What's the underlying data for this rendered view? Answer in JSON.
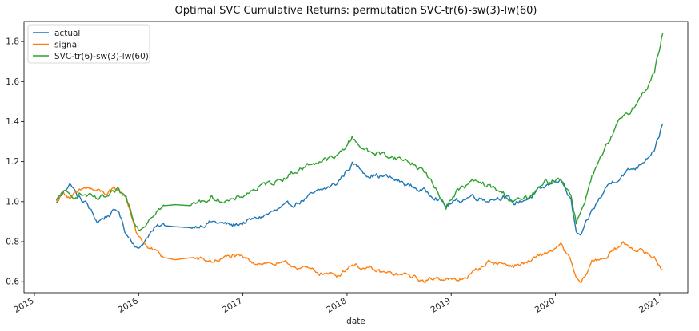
{
  "chart_data": {
    "type": "line",
    "title": "Optimal SVC Cumulative Returns: permutation SVC-tr(6)-sw(3)-lw(60)",
    "xlabel": "date",
    "ylabel": "",
    "x_tick_labels": [
      "2015",
      "2016",
      "2017",
      "2018",
      "2019",
      "2020",
      "2021"
    ],
    "x_tick_values": [
      2015.0,
      2016.0,
      2017.0,
      2018.0,
      2019.0,
      2020.0,
      2021.0
    ],
    "xlim": [
      2014.9,
      2021.27
    ],
    "y_tick_labels": [
      "0.6",
      "0.8",
      "1.0",
      "1.2",
      "1.4",
      "1.6",
      "1.8"
    ],
    "y_tick_values": [
      0.6,
      0.8,
      1.0,
      1.2,
      1.4,
      1.6,
      1.8
    ],
    "ylim": [
      0.545,
      1.9
    ],
    "grid": false,
    "legend_position": "top-left",
    "colors": {
      "actual": "#1f77b4",
      "signal": "#ff7f0e",
      "strategy": "#2ca02c"
    },
    "series": [
      {
        "name": "actual",
        "x": [
          2015.21,
          2015.28,
          2015.35,
          2015.42,
          2015.5,
          2015.6,
          2015.7,
          2015.8,
          2015.88,
          2015.95,
          2016.0,
          2016.05,
          2016.1,
          2016.17,
          2016.25,
          2016.35,
          2016.5,
          2016.7,
          2016.9,
          2017.1,
          2017.3,
          2017.5,
          2017.7,
          2017.9,
          2018.05,
          2018.2,
          2018.4,
          2018.6,
          2018.75,
          2018.85,
          2018.95,
          2019.05,
          2019.2,
          2019.35,
          2019.5,
          2019.6,
          2019.75,
          2019.9,
          2020.05,
          2020.15,
          2020.2,
          2020.25,
          2020.35,
          2020.5,
          2020.65,
          2020.8,
          2020.95,
          2021.03
        ],
        "y": [
          0.99,
          1.06,
          1.09,
          1.02,
          0.99,
          0.9,
          0.93,
          0.96,
          0.84,
          0.8,
          0.76,
          0.8,
          0.84,
          0.87,
          0.88,
          0.875,
          0.87,
          0.9,
          0.88,
          0.91,
          0.95,
          0.99,
          1.04,
          1.09,
          1.19,
          1.14,
          1.12,
          1.08,
          1.05,
          1.03,
          0.98,
          1.0,
          1.03,
          1.01,
          1.03,
          0.99,
          1.02,
          1.07,
          1.12,
          1.0,
          0.84,
          0.83,
          0.95,
          1.08,
          1.14,
          1.18,
          1.27,
          1.39
        ]
      },
      {
        "name": "signal",
        "x": [
          2015.21,
          2015.28,
          2015.35,
          2015.42,
          2015.5,
          2015.6,
          2015.7,
          2015.8,
          2015.88,
          2015.95,
          2016.0,
          2016.05,
          2016.1,
          2016.17,
          2016.25,
          2016.35,
          2016.5,
          2016.7,
          2016.9,
          2017.1,
          2017.3,
          2017.5,
          2017.7,
          2017.9,
          2018.05,
          2018.2,
          2018.4,
          2018.6,
          2018.75,
          2018.85,
          2018.95,
          2019.05,
          2019.2,
          2019.35,
          2019.5,
          2019.6,
          2019.75,
          2019.9,
          2020.05,
          2020.15,
          2020.2,
          2020.25,
          2020.35,
          2020.5,
          2020.65,
          2020.8,
          2020.95,
          2021.03
        ],
        "y": [
          1.0,
          1.05,
          1.02,
          1.04,
          1.07,
          1.05,
          1.04,
          1.06,
          1.02,
          0.9,
          0.82,
          0.79,
          0.77,
          0.75,
          0.72,
          0.71,
          0.72,
          0.7,
          0.73,
          0.7,
          0.69,
          0.68,
          0.65,
          0.63,
          0.69,
          0.66,
          0.64,
          0.63,
          0.6,
          0.62,
          0.62,
          0.6,
          0.64,
          0.7,
          0.69,
          0.68,
          0.7,
          0.74,
          0.78,
          0.7,
          0.61,
          0.59,
          0.7,
          0.73,
          0.79,
          0.76,
          0.72,
          0.66
        ]
      },
      {
        "name": "SVC-tr(6)-sw(3)-lw(60)",
        "x": [
          2015.21,
          2015.28,
          2015.35,
          2015.42,
          2015.5,
          2015.6,
          2015.7,
          2015.8,
          2015.88,
          2015.95,
          2016.0,
          2016.05,
          2016.1,
          2016.17,
          2016.25,
          2016.35,
          2016.5,
          2016.7,
          2016.9,
          2017.1,
          2017.3,
          2017.5,
          2017.7,
          2017.9,
          2018.05,
          2018.2,
          2018.4,
          2018.6,
          2018.75,
          2018.85,
          2018.95,
          2019.05,
          2019.2,
          2019.35,
          2019.5,
          2019.6,
          2019.75,
          2019.9,
          2020.05,
          2020.15,
          2020.2,
          2020.25,
          2020.35,
          2020.5,
          2020.65,
          2020.8,
          2020.95,
          2021.03
        ],
        "y": [
          1.0,
          1.05,
          1.02,
          1.04,
          1.03,
          1.01,
          1.02,
          1.05,
          1.02,
          0.92,
          0.87,
          0.88,
          0.92,
          0.96,
          0.98,
          0.985,
          0.98,
          1.02,
          1.0,
          1.06,
          1.1,
          1.15,
          1.2,
          1.22,
          1.32,
          1.25,
          1.23,
          1.2,
          1.15,
          1.06,
          0.98,
          1.05,
          1.1,
          1.08,
          1.04,
          1.0,
          1.02,
          1.09,
          1.12,
          1.03,
          0.9,
          0.96,
          1.12,
          1.28,
          1.43,
          1.5,
          1.65,
          1.84
        ]
      }
    ]
  }
}
